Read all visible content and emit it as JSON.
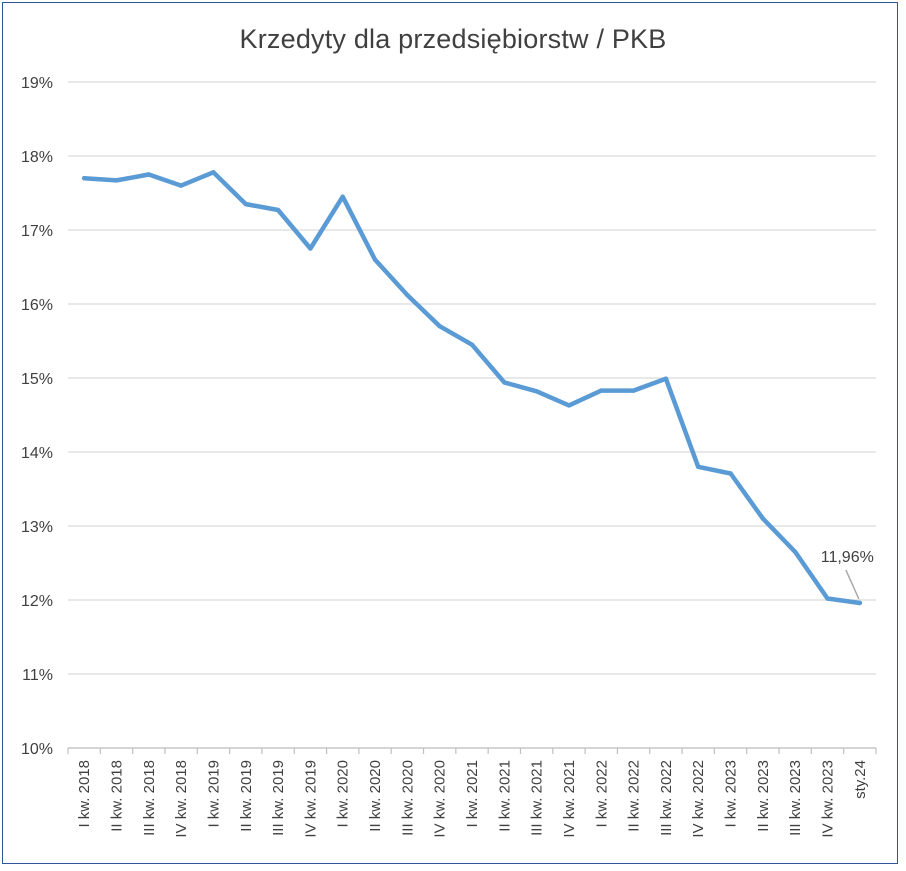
{
  "chart_data": {
    "type": "line",
    "title": "Krzedyty dla przedsiębiorstw / PKB",
    "xlabel": "",
    "ylabel": "",
    "ylim": [
      10,
      19
    ],
    "yticks": [
      "10%",
      "11%",
      "12%",
      "13%",
      "14%",
      "15%",
      "16%",
      "17%",
      "18%",
      "19%"
    ],
    "grid": true,
    "legend": "none",
    "line_color": "#5b9bd5",
    "categories": [
      "I kw. 2018",
      "II kw. 2018",
      "III kw. 2018",
      "IV kw. 2018",
      "I kw. 2019",
      "II kw. 2019",
      "III kw. 2019",
      "IV kw. 2019",
      "I kw. 2020",
      "II kw. 2020",
      "III kw. 2020",
      "IV kw. 2020",
      "I kw. 2021",
      "II kw. 2021",
      "III kw. 2021",
      "IV kw. 2021",
      "I kw. 2022",
      "II kw. 2022",
      "III kw. 2022",
      "IV kw. 2022",
      "I kw. 2023",
      "II kw. 2023",
      "III kw. 2023",
      "IV kw. 2023",
      "sty.24"
    ],
    "series": [
      {
        "values": [
          17.7,
          17.67,
          17.75,
          17.6,
          17.78,
          17.35,
          17.27,
          16.75,
          17.45,
          16.6,
          16.12,
          15.7,
          15.45,
          14.94,
          14.82,
          14.63,
          14.83,
          14.83,
          14.99,
          13.8,
          13.71,
          13.1,
          12.65,
          12.02,
          11.96
        ]
      }
    ],
    "annotations": [
      {
        "category": "sty.24",
        "text": "11,96%"
      }
    ]
  }
}
